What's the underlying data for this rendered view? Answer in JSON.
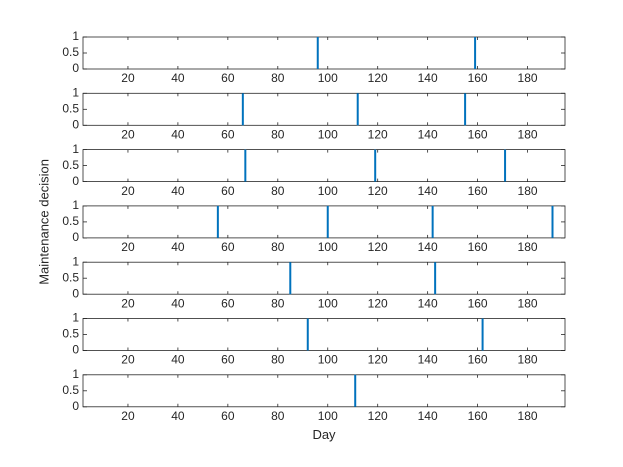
{
  "chart_data": [
    {
      "type": "stem",
      "x": [
        96,
        159
      ],
      "values": [
        1,
        1
      ],
      "color": "#0072bd",
      "xlim": [
        2,
        195
      ],
      "ylim": [
        0,
        1
      ],
      "xticks": [
        20,
        40,
        60,
        80,
        100,
        120,
        140,
        160,
        180
      ],
      "yticks": [
        0,
        0.5,
        1
      ]
    },
    {
      "type": "stem",
      "x": [
        66,
        112,
        155
      ],
      "values": [
        1,
        1,
        1
      ],
      "color": "#0072bd",
      "xlim": [
        2,
        195
      ],
      "ylim": [
        0,
        1
      ],
      "xticks": [
        20,
        40,
        60,
        80,
        100,
        120,
        140,
        160,
        180
      ],
      "yticks": [
        0,
        0.5,
        1
      ]
    },
    {
      "type": "stem",
      "x": [
        67,
        119,
        171
      ],
      "values": [
        1,
        1,
        1
      ],
      "color": "#0072bd",
      "xlim": [
        2,
        195
      ],
      "ylim": [
        0,
        1
      ],
      "xticks": [
        20,
        40,
        60,
        80,
        100,
        120,
        140,
        160,
        180
      ],
      "yticks": [
        0,
        0.5,
        1
      ]
    },
    {
      "type": "stem",
      "x": [
        56,
        100,
        142,
        190
      ],
      "values": [
        1,
        1,
        1,
        1
      ],
      "color": "#0072bd",
      "xlim": [
        2,
        195
      ],
      "ylim": [
        0,
        1
      ],
      "xticks": [
        20,
        40,
        60,
        80,
        100,
        120,
        140,
        160,
        180
      ],
      "yticks": [
        0,
        0.5,
        1
      ],
      "ylabel": "Maintenance decision"
    },
    {
      "type": "stem",
      "x": [
        85,
        143
      ],
      "values": [
        1,
        1
      ],
      "color": "#0072bd",
      "xlim": [
        2,
        195
      ],
      "ylim": [
        0,
        1
      ],
      "xticks": [
        20,
        40,
        60,
        80,
        100,
        120,
        140,
        160,
        180
      ],
      "yticks": [
        0,
        0.5,
        1
      ]
    },
    {
      "type": "stem",
      "x": [
        92,
        162
      ],
      "values": [
        1,
        1
      ],
      "color": "#0072bd",
      "xlim": [
        2,
        195
      ],
      "ylim": [
        0,
        1
      ],
      "xticks": [
        20,
        40,
        60,
        80,
        100,
        120,
        140,
        160,
        180
      ],
      "yticks": [
        0,
        0.5,
        1
      ]
    },
    {
      "type": "stem",
      "x": [
        111
      ],
      "values": [
        1
      ],
      "color": "#0072bd",
      "xlim": [
        2,
        195
      ],
      "ylim": [
        0,
        1
      ],
      "xticks": [
        20,
        40,
        60,
        80,
        100,
        120,
        140,
        160,
        180
      ],
      "yticks": [
        0,
        0.5,
        1
      ],
      "xlabel": "Day"
    }
  ]
}
